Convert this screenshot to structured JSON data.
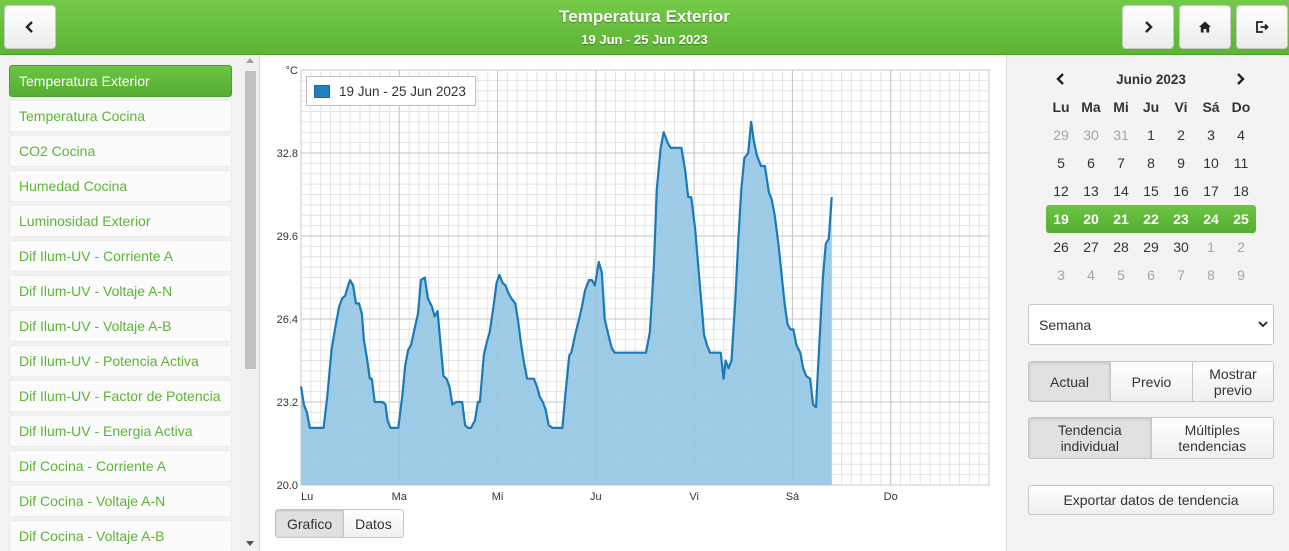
{
  "header": {
    "title": "Temperatura Exterior",
    "subtitle": "19 Jun - 25 Jun 2023",
    "back_icon": "chevron-left-icon",
    "next_icon": "chevron-right-icon",
    "home_icon": "home-icon",
    "logout_icon": "logout-icon"
  },
  "sidebar": {
    "items": [
      {
        "label": "Temperatura Exterior",
        "active": true
      },
      {
        "label": "Temperatura Cocina"
      },
      {
        "label": "CO2 Cocina"
      },
      {
        "label": "Humedad Cocina"
      },
      {
        "label": "Luminosidad Exterior"
      },
      {
        "label": "Dif Ilum-UV - Corriente A"
      },
      {
        "label": "Dif Ilum-UV - Voltaje A-N"
      },
      {
        "label": "Dif Ilum-UV - Voltaje A-B"
      },
      {
        "label": "Dif Ilum-UV - Potencia Activa"
      },
      {
        "label": "Dif Ilum-UV - Factor de Potencia"
      },
      {
        "label": "Dif Ilum-UV - Energia Activa"
      },
      {
        "label": "Dif Cocina - Corriente A"
      },
      {
        "label": "Dif Cocina - Voltaje A-N"
      },
      {
        "label": "Dif Cocina - Voltaje A-B"
      }
    ]
  },
  "chart_data": {
    "type": "area",
    "unit": "°C",
    "ylim": [
      20.0,
      36.0
    ],
    "yticks": [
      20.0,
      23.2,
      26.4,
      29.6,
      32.8
    ],
    "xlim": [
      0,
      7
    ],
    "xticks": [
      {
        "pos": 0,
        "label": "Lu"
      },
      {
        "pos": 1,
        "label": "Ma"
      },
      {
        "pos": 2,
        "label": "Mi"
      },
      {
        "pos": 3,
        "label": "Ju"
      },
      {
        "pos": 4,
        "label": "Vi"
      },
      {
        "pos": 5,
        "label": "Sá"
      },
      {
        "pos": 6,
        "label": "Do"
      }
    ],
    "grid": true,
    "legend_position": "top-left",
    "series": [
      {
        "name": "19 Jun - 25 Jun 2023",
        "color": "#1a7ab8",
        "fill": "#94c6e4",
        "points": [
          [
            0.0,
            23.8
          ],
          [
            0.03,
            23.1
          ],
          [
            0.06,
            22.8
          ],
          [
            0.09,
            22.2
          ],
          [
            0.13,
            22.2
          ],
          [
            0.19,
            22.2
          ],
          [
            0.23,
            22.2
          ],
          [
            0.27,
            23.5
          ],
          [
            0.31,
            25.2
          ],
          [
            0.35,
            26.1
          ],
          [
            0.39,
            26.9
          ],
          [
            0.42,
            27.2
          ],
          [
            0.45,
            27.3
          ],
          [
            0.48,
            27.7
          ],
          [
            0.5,
            27.9
          ],
          [
            0.53,
            27.7
          ],
          [
            0.56,
            27.0
          ],
          [
            0.59,
            27.0
          ],
          [
            0.62,
            26.6
          ],
          [
            0.64,
            25.6
          ],
          [
            0.67,
            24.9
          ],
          [
            0.7,
            24.1
          ],
          [
            0.72,
            24.1
          ],
          [
            0.75,
            23.2
          ],
          [
            0.79,
            23.2
          ],
          [
            0.83,
            23.2
          ],
          [
            0.86,
            23.1
          ],
          [
            0.88,
            22.5
          ],
          [
            0.91,
            22.2
          ],
          [
            0.96,
            22.2
          ],
          [
            0.99,
            22.2
          ],
          [
            1.03,
            23.4
          ],
          [
            1.06,
            24.6
          ],
          [
            1.09,
            25.2
          ],
          [
            1.12,
            25.4
          ],
          [
            1.16,
            26.1
          ],
          [
            1.19,
            26.6
          ],
          [
            1.22,
            27.9
          ],
          [
            1.26,
            28.0
          ],
          [
            1.29,
            27.2
          ],
          [
            1.33,
            26.9
          ],
          [
            1.36,
            26.5
          ],
          [
            1.39,
            26.7
          ],
          [
            1.42,
            25.4
          ],
          [
            1.45,
            24.2
          ],
          [
            1.48,
            24.1
          ],
          [
            1.51,
            23.8
          ],
          [
            1.54,
            23.1
          ],
          [
            1.58,
            23.2
          ],
          [
            1.61,
            23.2
          ],
          [
            1.64,
            23.2
          ],
          [
            1.67,
            22.3
          ],
          [
            1.7,
            22.2
          ],
          [
            1.73,
            22.2
          ],
          [
            1.77,
            22.5
          ],
          [
            1.8,
            23.2
          ],
          [
            1.82,
            23.2
          ],
          [
            1.86,
            25.0
          ],
          [
            1.89,
            25.5
          ],
          [
            1.92,
            25.9
          ],
          [
            1.96,
            26.9
          ],
          [
            1.99,
            27.8
          ],
          [
            2.02,
            28.1
          ],
          [
            2.05,
            27.8
          ],
          [
            2.08,
            27.7
          ],
          [
            2.11,
            27.4
          ],
          [
            2.14,
            27.2
          ],
          [
            2.18,
            27.0
          ],
          [
            2.21,
            26.3
          ],
          [
            2.24,
            25.4
          ],
          [
            2.27,
            24.7
          ],
          [
            2.3,
            24.1
          ],
          [
            2.34,
            24.1
          ],
          [
            2.37,
            24.1
          ],
          [
            2.4,
            23.8
          ],
          [
            2.43,
            23.4
          ],
          [
            2.46,
            23.2
          ],
          [
            2.49,
            22.9
          ],
          [
            2.52,
            22.3
          ],
          [
            2.56,
            22.2
          ],
          [
            2.6,
            22.2
          ],
          [
            2.63,
            22.2
          ],
          [
            2.66,
            22.2
          ],
          [
            2.69,
            23.5
          ],
          [
            2.73,
            25.0
          ],
          [
            2.75,
            25.1
          ],
          [
            2.79,
            25.8
          ],
          [
            2.83,
            26.4
          ],
          [
            2.86,
            26.9
          ],
          [
            2.89,
            27.5
          ],
          [
            2.93,
            27.9
          ],
          [
            2.96,
            27.9
          ],
          [
            2.99,
            27.7
          ],
          [
            3.03,
            28.6
          ],
          [
            3.06,
            28.2
          ],
          [
            3.09,
            26.4
          ],
          [
            3.12,
            25.9
          ],
          [
            3.16,
            25.3
          ],
          [
            3.19,
            25.1
          ],
          [
            3.23,
            25.1
          ],
          [
            3.3,
            25.1
          ],
          [
            3.4,
            25.1
          ],
          [
            3.47,
            25.1
          ],
          [
            3.51,
            25.1
          ],
          [
            3.55,
            25.9
          ],
          [
            3.59,
            28.4
          ],
          [
            3.62,
            31.4
          ],
          [
            3.66,
            33.0
          ],
          [
            3.69,
            33.6
          ],
          [
            3.73,
            33.2
          ],
          [
            3.76,
            33.0
          ],
          [
            3.81,
            33.0
          ],
          [
            3.87,
            33.0
          ],
          [
            3.91,
            32.1
          ],
          [
            3.94,
            31.1
          ],
          [
            3.97,
            31.1
          ],
          [
            4.01,
            29.9
          ],
          [
            4.04,
            28.5
          ],
          [
            4.07,
            27.2
          ],
          [
            4.1,
            25.8
          ],
          [
            4.13,
            25.4
          ],
          [
            4.16,
            25.1
          ],
          [
            4.21,
            25.1
          ],
          [
            4.27,
            25.1
          ],
          [
            4.3,
            24.1
          ],
          [
            4.32,
            24.8
          ],
          [
            4.35,
            24.5
          ],
          [
            4.38,
            24.8
          ],
          [
            4.42,
            27.2
          ],
          [
            4.45,
            29.5
          ],
          [
            4.48,
            31.4
          ],
          [
            4.51,
            32.6
          ],
          [
            4.55,
            32.8
          ],
          [
            4.58,
            34.0
          ],
          [
            4.61,
            33.2
          ],
          [
            4.64,
            32.7
          ],
          [
            4.68,
            32.3
          ],
          [
            4.72,
            32.3
          ],
          [
            4.76,
            31.3
          ],
          [
            4.79,
            31.0
          ],
          [
            4.82,
            30.4
          ],
          [
            4.86,
            29.2
          ],
          [
            4.89,
            28.1
          ],
          [
            4.92,
            27.0
          ],
          [
            4.95,
            26.2
          ],
          [
            4.98,
            26.0
          ],
          [
            5.01,
            26.0
          ],
          [
            5.04,
            25.4
          ],
          [
            5.08,
            25.1
          ],
          [
            5.11,
            24.5
          ],
          [
            5.14,
            24.2
          ],
          [
            5.18,
            24.1
          ],
          [
            5.21,
            23.1
          ],
          [
            5.24,
            23.0
          ],
          [
            5.27,
            25.2
          ],
          [
            5.31,
            28.0
          ],
          [
            5.34,
            29.3
          ],
          [
            5.37,
            29.5
          ],
          [
            5.4,
            31.1
          ]
        ]
      }
    ]
  },
  "view_tabs": [
    {
      "label": "Grafico",
      "active": true
    },
    {
      "label": "Datos"
    }
  ],
  "calendar": {
    "title": "Junio 2023",
    "prev_icon": "chevron-left-icon",
    "next_icon": "chevron-right-icon",
    "weekdays": [
      "Lu",
      "Ma",
      "Mi",
      "Ju",
      "Vi",
      "Sá",
      "Do"
    ],
    "weeks": [
      {
        "days": [
          {
            "d": "29",
            "o": true
          },
          {
            "d": "30",
            "o": true
          },
          {
            "d": "31",
            "o": true
          },
          {
            "d": "1"
          },
          {
            "d": "2"
          },
          {
            "d": "3"
          },
          {
            "d": "4"
          }
        ]
      },
      {
        "days": [
          {
            "d": "5"
          },
          {
            "d": "6"
          },
          {
            "d": "7"
          },
          {
            "d": "8"
          },
          {
            "d": "9"
          },
          {
            "d": "10"
          },
          {
            "d": "11"
          }
        ]
      },
      {
        "days": [
          {
            "d": "12"
          },
          {
            "d": "13"
          },
          {
            "d": "14"
          },
          {
            "d": "15"
          },
          {
            "d": "16"
          },
          {
            "d": "17"
          },
          {
            "d": "18"
          }
        ]
      },
      {
        "selected": true,
        "days": [
          {
            "d": "19"
          },
          {
            "d": "20"
          },
          {
            "d": "21"
          },
          {
            "d": "22"
          },
          {
            "d": "23"
          },
          {
            "d": "24"
          },
          {
            "d": "25"
          }
        ]
      },
      {
        "days": [
          {
            "d": "26"
          },
          {
            "d": "27"
          },
          {
            "d": "28"
          },
          {
            "d": "29"
          },
          {
            "d": "30"
          },
          {
            "d": "1",
            "o": true
          },
          {
            "d": "2",
            "o": true
          }
        ]
      },
      {
        "days": [
          {
            "d": "3",
            "o": true
          },
          {
            "d": "4",
            "o": true
          },
          {
            "d": "5",
            "o": true
          },
          {
            "d": "6",
            "o": true
          },
          {
            "d": "7",
            "o": true
          },
          {
            "d": "8",
            "o": true
          },
          {
            "d": "9",
            "o": true
          }
        ]
      }
    ]
  },
  "period_select": {
    "value": "Semana"
  },
  "range_buttons": [
    {
      "label": "Actual",
      "active": true
    },
    {
      "label": "Previo"
    },
    {
      "label": "Mostrar previo"
    }
  ],
  "trend_buttons": [
    {
      "label": "Tendencia individual",
      "active": true
    },
    {
      "label": "Múltiples tendencias"
    }
  ],
  "export_button": {
    "label": "Exportar datos de tendencia"
  },
  "colors": {
    "accent_green": "#5cb436",
    "series_line": "#1a7ab8",
    "series_fill": "#94c6e4"
  }
}
